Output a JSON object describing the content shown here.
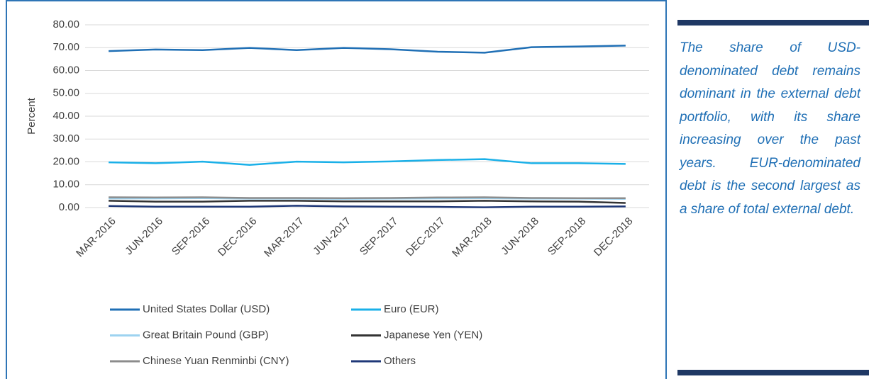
{
  "chart_data": {
    "type": "line",
    "y_label": "Percent",
    "categories": [
      "MAR-2016",
      "JUN-2016",
      "SEP-2016",
      "DEC-2016",
      "MAR-2017",
      "JUN-2017",
      "SEP-2017",
      "DEC-2017",
      "MAR-2018",
      "JUN-2018",
      "SEP-2018",
      "DEC-2018"
    ],
    "series": [
      {
        "name": "United States Dollar (USD)",
        "color": "#1f6fb5",
        "values": [
          68.5,
          69.2,
          68.9,
          69.9,
          68.9,
          69.9,
          69.3,
          68.2,
          67.8,
          70.2,
          70.5,
          70.9
        ]
      },
      {
        "name": "Euro (EUR)",
        "color": "#1ab0e8",
        "values": [
          19.8,
          19.4,
          20.1,
          18.7,
          20.1,
          19.8,
          20.2,
          20.8,
          21.2,
          19.4,
          19.4,
          19.1
        ]
      },
      {
        "name": "Great Britain Pound (GBP)",
        "color": "#9dd3f0",
        "values": [
          4.0,
          4.0,
          4.1,
          3.9,
          3.9,
          3.8,
          3.9,
          4.0,
          4.1,
          3.9,
          3.9,
          3.8
        ]
      },
      {
        "name": "Japanese Yen (YEN)",
        "color": "#333333",
        "values": [
          3.0,
          2.6,
          2.6,
          3.0,
          3.0,
          2.7,
          2.7,
          2.7,
          3.0,
          2.7,
          2.6,
          2.0
        ]
      },
      {
        "name": "Chinese Yuan Renminbi (CNY)",
        "color": "#8c8c8c",
        "values": [
          4.5,
          4.4,
          4.5,
          4.2,
          4.2,
          4.1,
          4.2,
          4.4,
          4.5,
          4.2,
          4.1,
          4.1
        ]
      },
      {
        "name": "Others",
        "color": "#1f3878",
        "values": [
          0.7,
          0.4,
          0.4,
          0.4,
          0.8,
          0.5,
          0.4,
          0.3,
          0.1,
          0.4,
          0.4,
          0.5
        ]
      }
    ],
    "ylim": [
      0,
      80
    ],
    "yticks": [
      {
        "value": 0,
        "label": "0.00"
      },
      {
        "value": 10,
        "label": "10.00"
      },
      {
        "value": 20,
        "label": "20.00"
      },
      {
        "value": 30,
        "label": "30.00"
      },
      {
        "value": 40,
        "label": "40.00"
      },
      {
        "value": 50,
        "label": "50.00"
      },
      {
        "value": 60,
        "label": "60.00"
      },
      {
        "value": 70,
        "label": "70.00"
      },
      {
        "value": 80,
        "label": "80.00"
      }
    ],
    "grid": true
  },
  "side_note": "The share of USD-denominated debt remains dominant in the external debt portfolio, with its share increasing over the past years. EUR-denominated debt is the second largest as a share of total external debt."
}
